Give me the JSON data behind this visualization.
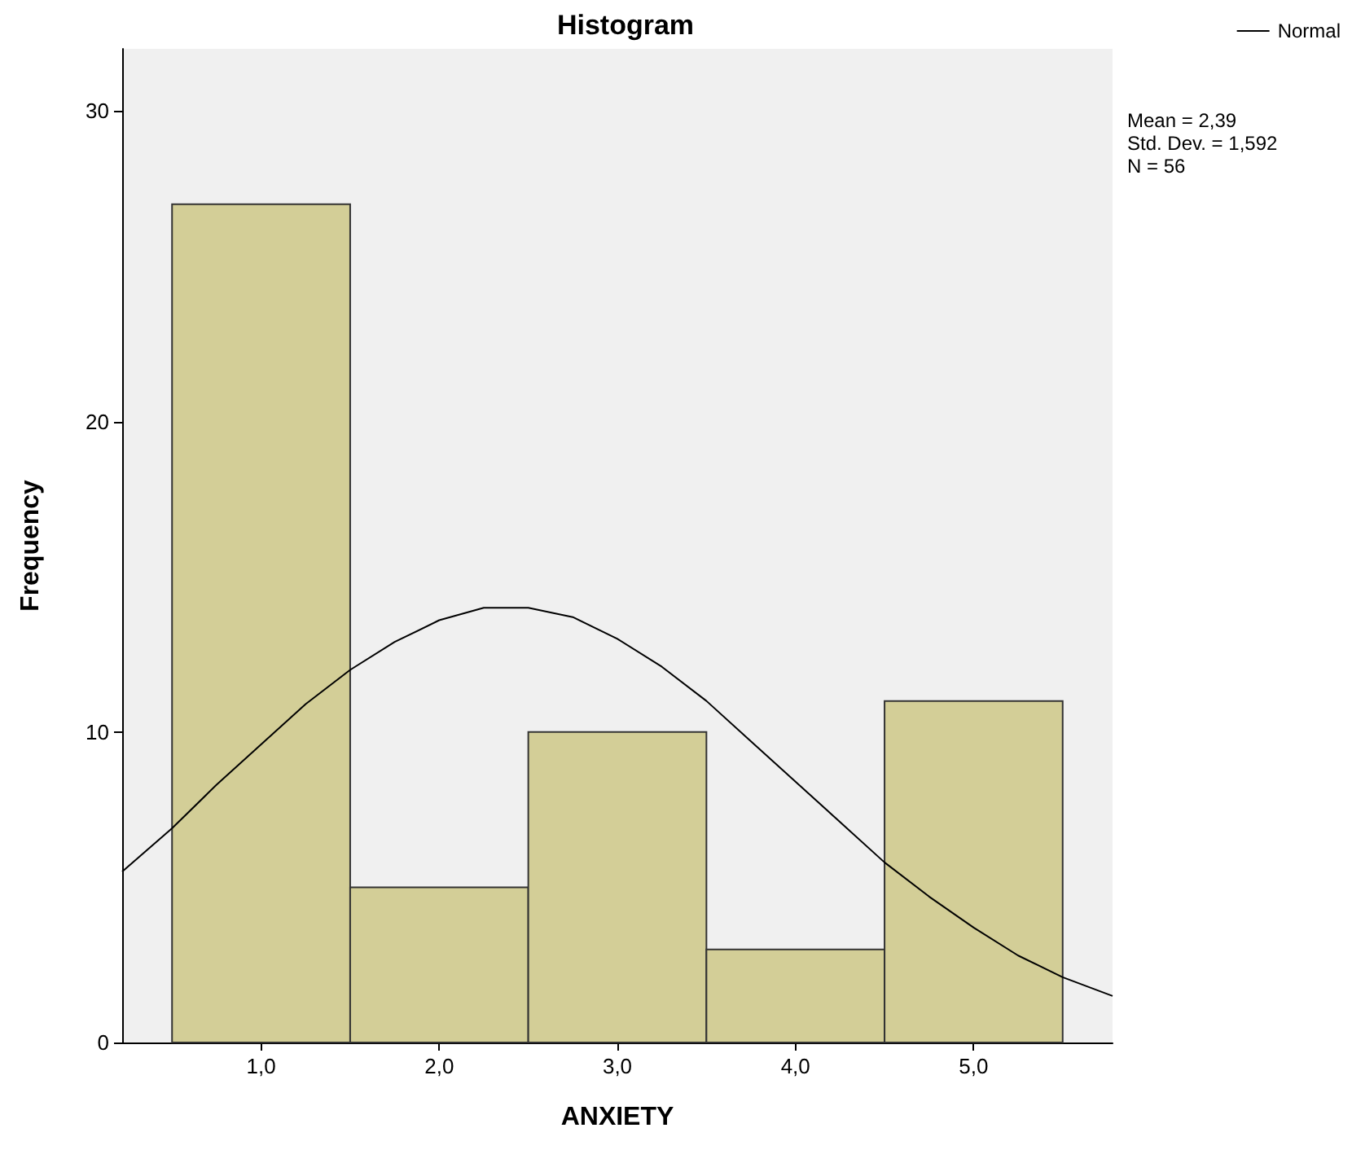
{
  "chart_data": {
    "type": "histogram",
    "title": "Histogram",
    "xlabel": "ANXIETY",
    "ylabel": "Frequency",
    "bins": [
      0.5,
      1.5,
      2.5,
      3.5,
      4.5,
      5.5
    ],
    "series": [
      {
        "type": "histogram",
        "color": "#d3ce97",
        "values": [
          27,
          5,
          10,
          3,
          11
        ]
      },
      {
        "type": "line",
        "name": "Normal",
        "color": "#000000",
        "x": [
          0.22,
          0.5,
          0.75,
          1.0,
          1.25,
          1.5,
          1.75,
          2.0,
          2.25,
          2.39,
          2.5,
          2.75,
          3.0,
          3.25,
          3.5,
          3.75,
          4.0,
          4.25,
          4.5,
          4.75,
          5.0,
          5.25,
          5.5,
          5.78
        ],
        "values": [
          5.5,
          6.9,
          8.3,
          9.6,
          10.9,
          12.0,
          12.9,
          13.6,
          14.0,
          14.0,
          14.0,
          13.7,
          13.0,
          12.1,
          11.0,
          9.7,
          8.4,
          7.1,
          5.8,
          4.7,
          3.7,
          2.8,
          2.1,
          1.5
        ]
      }
    ],
    "xlim": [
      0.22,
      5.78
    ],
    "xticks": [
      {
        "value": 1,
        "label": "1,0"
      },
      {
        "value": 2,
        "label": "2,0"
      },
      {
        "value": 3,
        "label": "3,0"
      },
      {
        "value": 4,
        "label": "4,0"
      },
      {
        "value": 5,
        "label": "5,0"
      }
    ],
    "ylim": [
      0,
      32
    ],
    "yticks": [
      0,
      10,
      20,
      30
    ],
    "annotations": [
      "Mean = 2,39",
      "Std. Dev. = 1,592",
      "N = 56"
    ],
    "legend": "top right",
    "marker": "none",
    "line_style": "solid",
    "grid": false
  }
}
